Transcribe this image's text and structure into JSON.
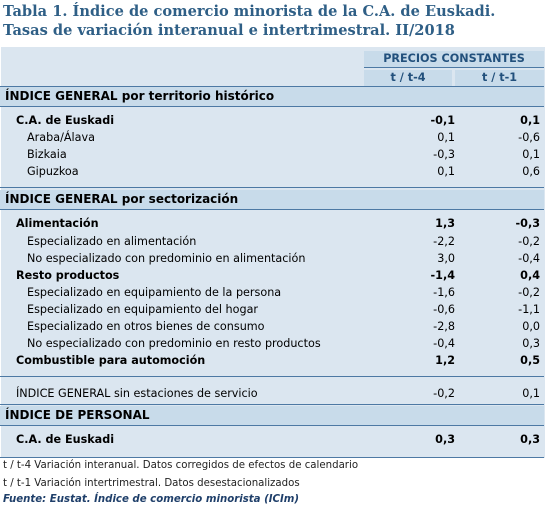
{
  "title_line1": "Tabla 1. Índice de comercio minorista de la C.A. de Euskadi.",
  "title_line2": "Tasas de variación interanual e intertrimestral. II/2018",
  "header": {
    "group": "PRECIOS CONSTANTES",
    "col1": "t / t-4",
    "col2": "t / t-1"
  },
  "sections": {
    "territorio": "ÍNDICE GENERAL por territorio histórico",
    "sectorizacion": "ÍNDICE GENERAL por sectorización",
    "personal": "ÍNDICE DE PERSONAL"
  },
  "rows": {
    "cae": {
      "label": "C.A. de Euskadi",
      "v1": "-0,1",
      "v2": "0,1"
    },
    "araba": {
      "label": "Araba/Álava",
      "v1": "0,1",
      "v2": "-0,6"
    },
    "bizkaia": {
      "label": "Bizkaia",
      "v1": "-0,3",
      "v2": "0,1"
    },
    "gipuzkoa": {
      "label": "Gipuzkoa",
      "v1": "0,1",
      "v2": "0,6"
    },
    "alimentacion": {
      "label": "Alimentación",
      "v1": "1,3",
      "v2": "-0,3"
    },
    "esp_alim": {
      "label": "Especializado en alimentación",
      "v1": "-2,2",
      "v2": "-0,2"
    },
    "noesp_alim": {
      "label": "No especializado con predominio en alimentación",
      "v1": "3,0",
      "v2": "-0,4"
    },
    "resto": {
      "label": "Resto productos",
      "v1": "-1,4",
      "v2": "0,4"
    },
    "equip_persona": {
      "label": "Especializado en equipamiento de la persona",
      "v1": "-1,6",
      "v2": "-0,2"
    },
    "equip_hogar": {
      "label": "Especializado en equipamiento del hogar",
      "v1": "-0,6",
      "v2": "-1,1"
    },
    "otros_bienes": {
      "label": "Especializado en otros bienes de consumo",
      "v1": "-2,8",
      "v2": "0,0"
    },
    "noesp_resto": {
      "label": "No especializado con predominio en resto productos",
      "v1": "-0,4",
      "v2": "0,3"
    },
    "combustible": {
      "label": "Combustible para automoción",
      "v1": "1,2",
      "v2": "0,5"
    },
    "sin_estaciones": {
      "label": "ÍNDICE GENERAL sin estaciones de servicio",
      "v1": "-0,2",
      "v2": "0,1"
    },
    "personal_cae": {
      "label": "C.A. de Euskadi",
      "v1": "0,3",
      "v2": "0,3"
    }
  },
  "notes": {
    "n1": "t / t-4 Variación interanual. Datos corregidos de efectos de calendario",
    "n2": "t / t-1 Variación intertrimestral. Datos desestacionalizados",
    "source": "Fuente: Eustat. Índice de comercio minorista (ICIm)"
  },
  "colors": {
    "title": "#2f5f86",
    "table_bg": "#dbe6f0",
    "header_bg": "#c8dbea",
    "rule": "#4d79a4"
  }
}
